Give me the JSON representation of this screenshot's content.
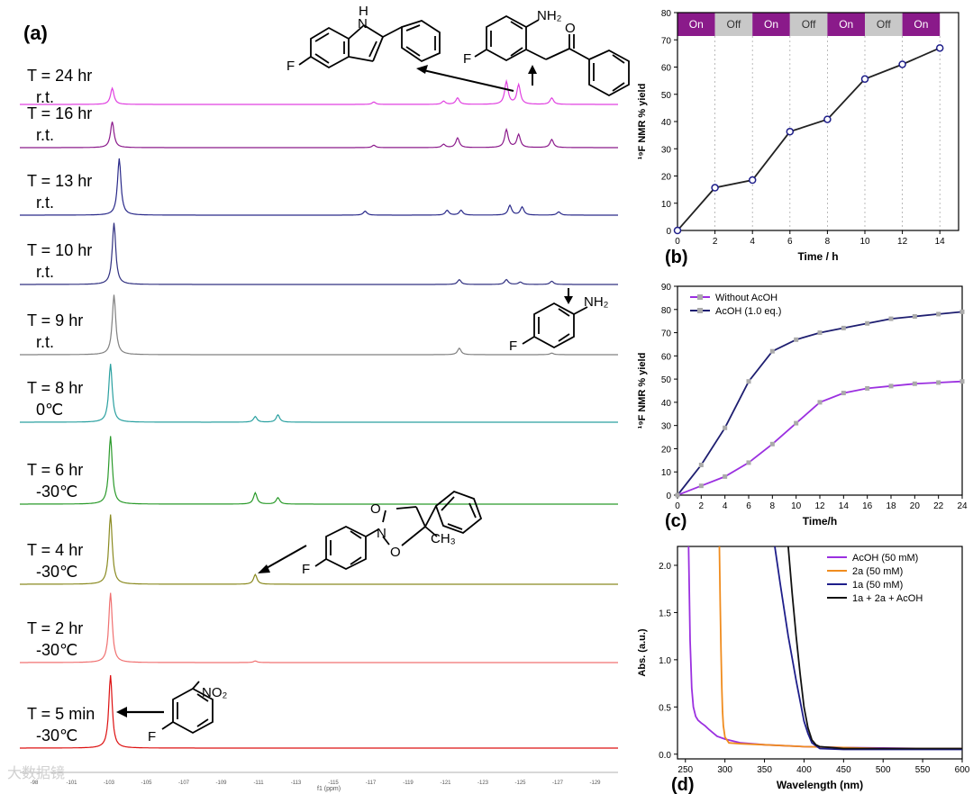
{
  "panel_a": {
    "label": "(a)",
    "xlabel": "f1 (ppm)",
    "ticks": [
      "-98",
      "-101",
      "-103",
      "-105",
      "-107",
      "-109",
      "-111",
      "-113",
      "-115",
      "-117",
      "-119",
      "-121",
      "-123",
      "-125",
      "-127",
      "-129"
    ],
    "watermark": "大数据镜",
    "traces": [
      {
        "time": "T = 24 hr",
        "temp": "r.t.",
        "color": "#e040e0",
        "peaks": [
          [
            -101.8,
            1
          ],
          [
            -116.8,
            0.15
          ],
          [
            -120.8,
            0.2
          ],
          [
            -121.6,
            0.4
          ],
          [
            -124.4,
            1.4
          ],
          [
            -125.1,
            1.2
          ],
          [
            -127.0,
            0.4
          ]
        ]
      },
      {
        "time": "T = 16 hr",
        "temp": "r.t.",
        "color": "#8b1a8b",
        "peaks": [
          [
            -101.8,
            1.6
          ],
          [
            -116.8,
            0.15
          ],
          [
            -120.8,
            0.2
          ],
          [
            -121.6,
            0.6
          ],
          [
            -124.4,
            1.1
          ],
          [
            -125.1,
            0.8
          ],
          [
            -127.0,
            0.5
          ]
        ]
      },
      {
        "time": "T = 13 hr",
        "temp": "r.t.",
        "color": "#2a2a8a",
        "peaks": [
          [
            -102.2,
            3.5
          ],
          [
            -116.3,
            0.25
          ],
          [
            -121.0,
            0.3
          ],
          [
            -121.8,
            0.3
          ],
          [
            -124.6,
            0.6
          ],
          [
            -125.3,
            0.5
          ],
          [
            -127.4,
            0.2
          ]
        ]
      },
      {
        "time": "T = 10 hr",
        "temp": "r.t.",
        "color": "#303080",
        "peaks": [
          [
            -101.9,
            3.8
          ],
          [
            -121.7,
            0.3
          ],
          [
            -124.4,
            0.3
          ],
          [
            -125.2,
            0.15
          ],
          [
            -127.0,
            0.2
          ]
        ]
      },
      {
        "time": "T = 9 hr",
        "temp": "r.t.",
        "color": "#808080",
        "peaks": [
          [
            -101.9,
            3.7
          ],
          [
            -121.7,
            0.4
          ],
          [
            -127.0,
            0.1
          ]
        ]
      },
      {
        "time": "T = 8 hr",
        "temp": "0℃",
        "color": "#2aa0a0",
        "peaks": [
          [
            -101.7,
            3.6
          ],
          [
            -110.0,
            0.35
          ],
          [
            -111.3,
            0.45
          ]
        ]
      },
      {
        "time": "T = 6 hr",
        "temp": "-30℃",
        "color": "#2a9a2a",
        "peaks": [
          [
            -101.7,
            4.2
          ],
          [
            -110.0,
            0.7
          ],
          [
            -111.3,
            0.4
          ]
        ]
      },
      {
        "time": "T = 4 hr",
        "temp": "-30℃",
        "color": "#8a8a20",
        "peaks": [
          [
            -101.7,
            4.3
          ],
          [
            -110.0,
            0.6
          ]
        ]
      },
      {
        "time": "T = 2 hr",
        "temp": "-30℃",
        "color": "#f07070",
        "peaks": [
          [
            -101.7,
            4.3
          ],
          [
            -110.0,
            0.1
          ]
        ]
      },
      {
        "time": "T = 5 min",
        "temp": "-30℃",
        "color": "#dd1010",
        "peaks": [
          [
            -101.7,
            4.5
          ]
        ]
      }
    ],
    "structures": {
      "indole": {
        "nh_label": "H",
        "n_label": "N",
        "f_label": "F"
      },
      "ketone": {
        "nh2_label": "NH₂",
        "o_label": "O",
        "f_label": "F"
      },
      "aniline": {
        "nh2_label": "NH₂",
        "f_label": "F"
      },
      "cyclic": {
        "o1_label": "O",
        "n_label": "N",
        "o2_label": "O",
        "ch3_label": "CH₃",
        "f_label": "F"
      },
      "nitro": {
        "no2_label": "NO₂",
        "f_label": "F"
      }
    }
  },
  "chart_data": [
    {
      "panel": "(b)",
      "type": "line",
      "xlabel": "Time / h",
      "ylabel": "¹⁹F NMR % yield",
      "xlim": [
        0,
        15
      ],
      "ylim": [
        0,
        80
      ],
      "xticks": [
        0,
        2,
        4,
        6,
        8,
        10,
        12,
        14
      ],
      "yticks": [
        0,
        10,
        20,
        30,
        40,
        50,
        60,
        70,
        80
      ],
      "x": [
        0,
        2,
        4,
        6,
        8,
        10,
        12,
        14
      ],
      "values": [
        0,
        15.7,
        18.5,
        36.3,
        40.8,
        55.6,
        61,
        67
      ],
      "color": "#222222",
      "marker_color": "#1e1e8a",
      "phases": [
        {
          "label": "On",
          "start": 0,
          "end": 2,
          "color": "#8a1a8a"
        },
        {
          "label": "Off",
          "start": 2,
          "end": 4,
          "color": "#c8c8c8"
        },
        {
          "label": "On",
          "start": 4,
          "end": 6,
          "color": "#8a1a8a"
        },
        {
          "label": "Off",
          "start": 6,
          "end": 8,
          "color": "#c8c8c8"
        },
        {
          "label": "On",
          "start": 8,
          "end": 10,
          "color": "#8a1a8a"
        },
        {
          "label": "Off",
          "start": 10,
          "end": 12,
          "color": "#c8c8c8"
        },
        {
          "label": "On",
          "start": 12,
          "end": 14,
          "color": "#8a1a8a"
        }
      ]
    },
    {
      "panel": "(c)",
      "type": "line",
      "xlabel": "Time/h",
      "ylabel": "¹⁹F NMR % yield",
      "xlim": [
        0,
        24
      ],
      "ylim": [
        0,
        90
      ],
      "xticks": [
        0,
        2,
        4,
        6,
        8,
        10,
        12,
        14,
        16,
        18,
        20,
        22,
        24
      ],
      "yticks": [
        0,
        10,
        20,
        30,
        40,
        50,
        60,
        70,
        80,
        90
      ],
      "x": [
        0,
        2,
        4,
        6,
        8,
        10,
        12,
        14,
        16,
        18,
        20,
        22,
        24
      ],
      "legend_position": "top-left",
      "series": [
        {
          "name": "Without AcOH",
          "color": "#9b30e0",
          "values": [
            0,
            4,
            8,
            14,
            22,
            31,
            40,
            44,
            46,
            47,
            48,
            48.5,
            49
          ]
        },
        {
          "name": "AcOH (1.0 eq.)",
          "color": "#1e1e70",
          "values": [
            0,
            13,
            29,
            49,
            62,
            67,
            70,
            72,
            74,
            76,
            77,
            78,
            79
          ]
        }
      ]
    },
    {
      "panel": "(d)",
      "type": "line",
      "xlabel": "Wavelength (nm)",
      "ylabel": "Abs. (a.u.)",
      "xlim": [
        240,
        600
      ],
      "ylim": [
        -0.05,
        2.2
      ],
      "xticks": [
        250,
        300,
        350,
        400,
        450,
        500,
        550,
        600
      ],
      "yticks": [
        0.0,
        0.5,
        1.0,
        1.5,
        2.0
      ],
      "legend_position": "top-right",
      "series": [
        {
          "name": "AcOH (50 mM)",
          "color": "#9b30e0",
          "x": [
            254,
            256,
            258,
            260,
            263,
            266,
            270,
            275,
            280,
            290,
            300,
            320,
            350,
            400,
            450,
            500,
            550,
            600
          ],
          "values": [
            2.2,
            1.2,
            0.7,
            0.5,
            0.4,
            0.36,
            0.33,
            0.3,
            0.26,
            0.19,
            0.16,
            0.12,
            0.1,
            0.08,
            0.07,
            0.065,
            0.06,
            0.06
          ]
        },
        {
          "name": "2a (50 mM)",
          "color": "#f08c1e",
          "x": [
            293,
            294,
            295,
            296,
            297,
            298,
            300,
            305,
            320,
            350,
            400,
            450,
            500,
            550,
            600
          ],
          "values": [
            2.2,
            1.6,
            1.1,
            0.7,
            0.45,
            0.3,
            0.18,
            0.12,
            0.11,
            0.1,
            0.08,
            0.07,
            0.06,
            0.06,
            0.06
          ]
        },
        {
          "name": "1a (50 mM)",
          "color": "#1e1e8a",
          "x": [
            363,
            370,
            380,
            390,
            400,
            405,
            410,
            420,
            450,
            500,
            550,
            600
          ],
          "values": [
            2.2,
            1.8,
            1.25,
            0.78,
            0.35,
            0.22,
            0.12,
            0.06,
            0.05,
            0.05,
            0.05,
            0.05
          ]
        },
        {
          "name": "1a + 2a + AcOH",
          "color": "#111111",
          "x": [
            380,
            385,
            390,
            395,
            400,
            405,
            410,
            415,
            420,
            450,
            500,
            550,
            600
          ],
          "values": [
            2.2,
            1.7,
            1.25,
            0.85,
            0.5,
            0.28,
            0.15,
            0.1,
            0.08,
            0.06,
            0.06,
            0.06,
            0.06
          ]
        }
      ]
    }
  ]
}
